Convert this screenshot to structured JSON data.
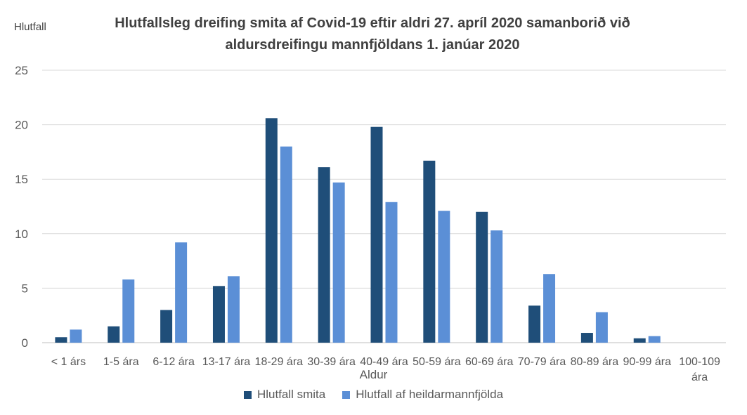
{
  "chart_data": {
    "type": "bar",
    "title_lines": [
      "Hlutfallsleg dreifing smita af Covid-19 eftir aldri 27. apríl 2020 samanborið við",
      "aldursdreifingu mannfjöldans 1. janúar 2020"
    ],
    "ylabel": "Hlutfall",
    "xlabel": "Aldur",
    "ylim": [
      0,
      25
    ],
    "yticks": [
      "0",
      "5",
      "10",
      "15",
      "20",
      "25"
    ],
    "grid": true,
    "legend_position": "bottom",
    "categories": [
      [
        "< 1 árs"
      ],
      [
        "1-5 ára"
      ],
      [
        "6-12 ára"
      ],
      [
        "13-17 ára"
      ],
      [
        "18-29 ára"
      ],
      [
        "30-39 ára"
      ],
      [
        "40-49 ára"
      ],
      [
        "50-59 ára"
      ],
      [
        "60-69 ára"
      ],
      [
        "70-79 ára"
      ],
      [
        "80-89 ára"
      ],
      [
        "90-99 ára"
      ],
      [
        "100-109",
        "ára"
      ]
    ],
    "series": [
      {
        "name": "Hlutfall smita",
        "color": "#1f4e79",
        "values": [
          0.5,
          1.5,
          3.0,
          5.2,
          20.6,
          16.1,
          19.8,
          16.7,
          12.0,
          3.4,
          0.9,
          0.4,
          0
        ]
      },
      {
        "name": "Hlutfall af heildarmannfjölda",
        "color": "#5b8fd6",
        "values": [
          1.2,
          5.8,
          9.2,
          6.1,
          18.0,
          14.7,
          12.9,
          12.1,
          10.3,
          6.3,
          2.8,
          0.6,
          0
        ]
      }
    ]
  }
}
